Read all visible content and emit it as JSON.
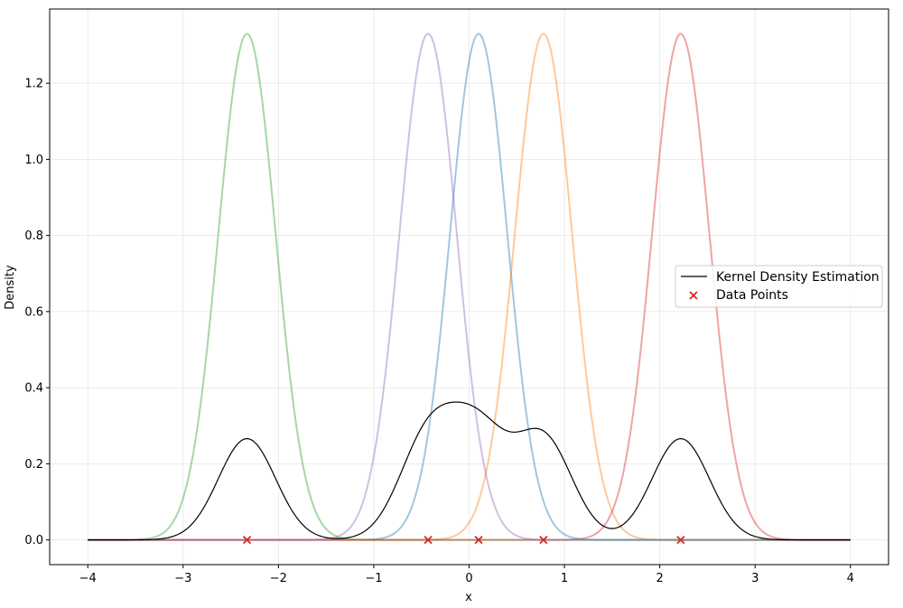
{
  "chart_data": {
    "type": "line",
    "xlabel": "x",
    "ylabel": "Density",
    "xlim": [
      -4.4,
      4.4
    ],
    "ylim": [
      -0.065,
      1.395
    ],
    "x_ticks": [
      -4,
      -3,
      -2,
      -1,
      0,
      1,
      2,
      3,
      4
    ],
    "x_tick_labels": [
      "−4",
      "−3",
      "−2",
      "−1",
      "0",
      "1",
      "2",
      "3",
      "4"
    ],
    "y_ticks": [
      0.0,
      0.2,
      0.4,
      0.6,
      0.8,
      1.0,
      1.2
    ],
    "y_tick_labels": [
      "0.0",
      "0.2",
      "0.4",
      "0.6",
      "0.8",
      "1.0",
      "1.2"
    ],
    "grid": true,
    "x_range": [
      -4,
      4
    ],
    "kernel_bandwidth": 0.3,
    "kernel_peak": 1.33,
    "data_points": [
      0.1,
      0.78,
      -2.33,
      2.22,
      -0.43
    ],
    "kernel_colors": [
      "#1f77b4",
      "#ff7f0e",
      "#2ca02c",
      "#d62728",
      "#9467bd"
    ],
    "kde_color": "#000000",
    "point_color": "#d62728",
    "legend": {
      "placement": "center-right",
      "entries": [
        "Kernel Density Estimation",
        "Data Points"
      ]
    }
  }
}
